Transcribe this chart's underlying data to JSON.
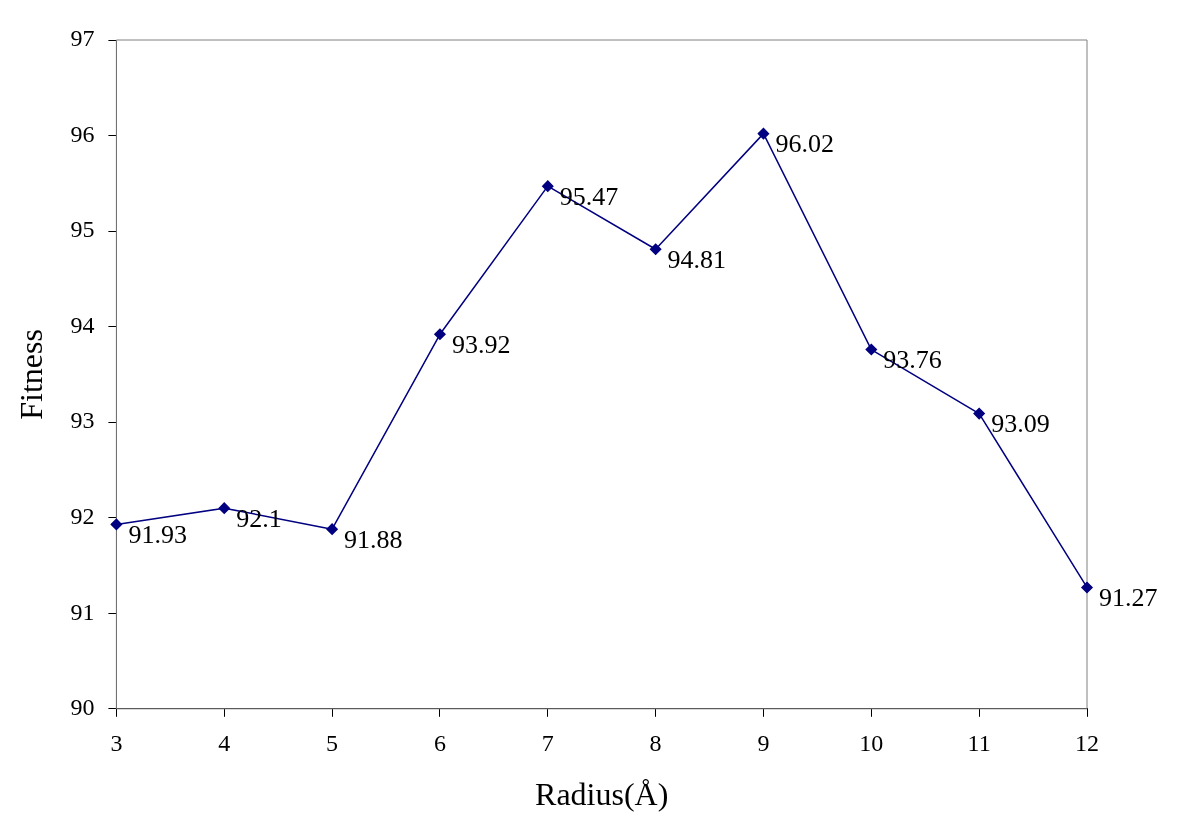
{
  "chart_data": {
    "type": "line",
    "xlabel": "Radius(Å)",
    "ylabel": "Fitness",
    "categories": [
      "3",
      "4",
      "5",
      "6",
      "7",
      "8",
      "9",
      "10",
      "11",
      "12"
    ],
    "series": [
      {
        "color": "#000080",
        "values": [
          91.93,
          92.1,
          91.88,
          93.92,
          95.47,
          94.81,
          96.02,
          93.76,
          93.09,
          91.27
        ]
      }
    ],
    "ylim": [
      90,
      97
    ],
    "yticks": [
      90,
      91,
      92,
      93,
      94,
      95,
      96,
      97
    ],
    "data_labels": true,
    "marker": "diamond"
  }
}
